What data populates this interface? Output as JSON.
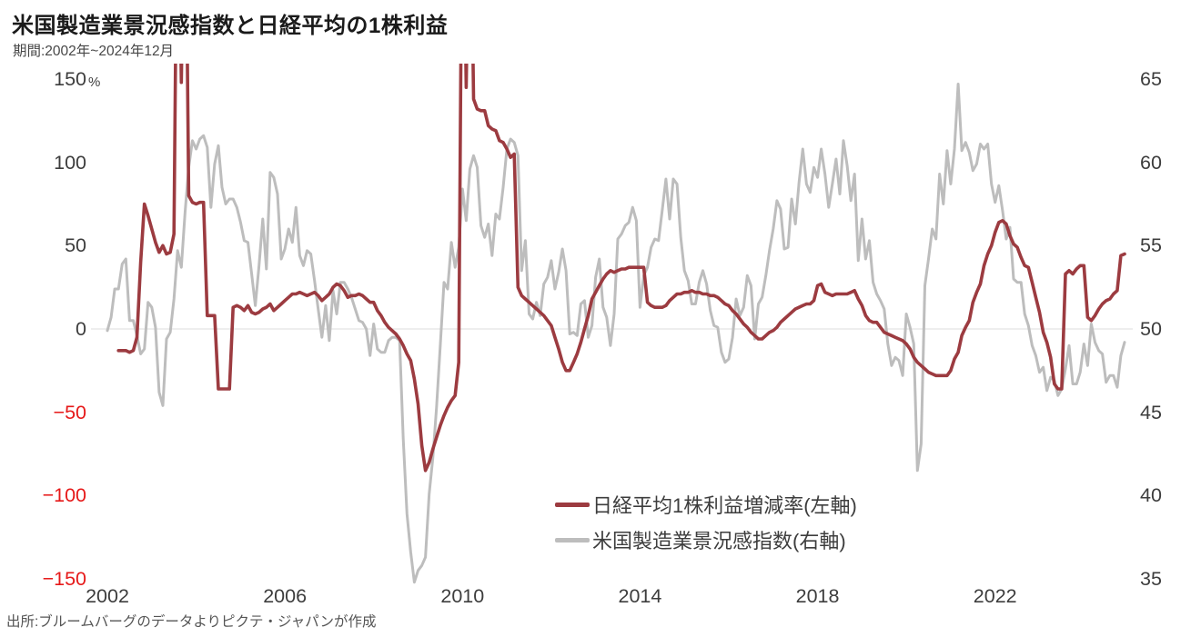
{
  "chart": {
    "title": "米国製造業景況感指数と日経平均の1株利益",
    "subtitle": "期間:2002年~2024年12月",
    "source": "出所:ブルームバーグのデータよりピクテ・ジャパンが作成",
    "unit_label": "%"
  },
  "legend": {
    "items": [
      {
        "label": "日経平均1株利益増減率(左軸)",
        "color": "#9c3b40"
      },
      {
        "label": "米国製造業景況感指数(右軸)",
        "color": "#bdbdbd"
      }
    ]
  },
  "axes": {
    "left": {
      "ticks": [
        150,
        100,
        50,
        0,
        -50,
        -100,
        -150
      ],
      "positive_color": "#3d3d3d",
      "negative_color": "#e61919",
      "unit": "%"
    },
    "right": {
      "ticks": [
        65,
        60,
        55,
        50,
        45,
        40,
        35
      ],
      "color": "#3d3d3d"
    },
    "x": {
      "ticks": [
        "2002",
        "2006",
        "2010",
        "2014",
        "2018",
        "2022"
      ],
      "color": "#3d3d3d"
    }
  },
  "colors": {
    "eps_line": "#9c3b40",
    "ism_line": "#bdbdbd",
    "zero_gridline": "#dcdcdc",
    "background": "#ffffff"
  },
  "chart_data": {
    "type": "line",
    "title": "米国製造業景況感指数と日経平均の1株利益",
    "frequency": "monthly",
    "x_start": "2002-01",
    "x_end": "2024-12",
    "left_axis_range": [
      -150,
      150
    ],
    "right_axis_range": [
      35,
      65
    ],
    "grid": "zero-line-only",
    "legend_position": "inside-bottom-center",
    "series": [
      {
        "name": "日経平均1株利益増減率(左軸)",
        "axis": "left",
        "unit": "%",
        "color": "#9c3b40",
        "values": [
          null,
          null,
          null,
          -13,
          -13,
          -13,
          -14,
          -13,
          -5,
          40,
          75,
          68,
          60,
          52,
          46,
          50,
          45,
          46,
          57,
          300,
          148,
          300,
          80,
          76,
          75,
          76,
          76,
          8,
          8,
          8,
          -36,
          -36,
          -36,
          -36,
          13,
          14,
          13,
          11,
          14,
          10,
          9,
          10,
          12,
          13,
          15,
          11,
          13,
          15,
          17,
          19,
          21,
          21,
          22,
          21,
          20,
          21,
          22,
          20,
          17,
          19,
          21,
          25,
          27,
          26,
          23,
          19,
          20,
          20,
          21,
          20,
          18,
          16,
          16,
          11,
          8,
          4,
          1,
          -1,
          -3,
          -6,
          -10,
          -15,
          -19,
          -30,
          -45,
          -70,
          -85,
          -80,
          -72,
          -65,
          -58,
          -52,
          -47,
          -43,
          -40,
          -20,
          300,
          145,
          300,
          138,
          132,
          131,
          131,
          122,
          120,
          119,
          113,
          112,
          108,
          103,
          105,
          25,
          20,
          18,
          16,
          14,
          12,
          10,
          8,
          5,
          2,
          -5,
          -12,
          -20,
          -25,
          -25,
          -20,
          -15,
          -8,
          0,
          8,
          18,
          22,
          26,
          30,
          33,
          35,
          34,
          35,
          36,
          36,
          37,
          37,
          37,
          37,
          37,
          16,
          14,
          13,
          13,
          13,
          14,
          17,
          19,
          21,
          21,
          22,
          22,
          23,
          22,
          22,
          21,
          21,
          20,
          20,
          19,
          17,
          15,
          14,
          11,
          9,
          6,
          3,
          1,
          -2,
          -4,
          -6,
          -6,
          -4,
          -2,
          -1,
          1,
          4,
          6,
          8,
          10,
          12,
          13,
          14,
          15,
          15,
          17,
          26,
          27,
          22,
          21,
          20,
          21,
          21,
          21,
          21,
          22,
          23,
          18,
          14,
          8,
          5,
          4,
          4,
          1,
          -2,
          -3,
          -4,
          -5,
          -6,
          -7,
          -9,
          -12,
          -17,
          -20,
          -22,
          -24,
          -26,
          -27,
          -28,
          -28,
          -28,
          -28,
          -25,
          -18,
          -14,
          -4,
          1,
          5,
          16,
          22,
          27,
          38,
          45,
          50,
          58,
          64,
          65,
          63,
          56,
          51,
          49,
          43,
          38,
          37,
          28,
          19,
          10,
          -2,
          -8,
          -17,
          -33,
          -36,
          -36,
          33,
          35,
          33,
          36,
          38,
          38,
          7,
          5,
          8,
          12,
          15,
          17,
          18,
          21,
          23,
          44,
          45
        ]
      },
      {
        "name": "米国製造業景況感指数(右軸)",
        "axis": "right",
        "unit": "index",
        "color": "#bdbdbd",
        "values": [
          49.9,
          50.7,
          52.4,
          52.4,
          53.9,
          54.2,
          50.5,
          50.5,
          49.6,
          48.5,
          48.8,
          51.6,
          51.3,
          50.1,
          46.2,
          45.4,
          49.4,
          49.8,
          51.8,
          54.7,
          53.7,
          57.0,
          59.7,
          61.3,
          60.8,
          61.4,
          61.6,
          60.9,
          57.3,
          59.9,
          61.0,
          58.5,
          57.5,
          57.8,
          57.8,
          57.3,
          56.4,
          55.3,
          55.2,
          53.3,
          51.4,
          53.8,
          56.6,
          53.6,
          59.4,
          59.1,
          58.1,
          54.2,
          54.8,
          56.0,
          55.2,
          57.3,
          54.4,
          53.8,
          54.7,
          54.5,
          52.9,
          51.2,
          49.5,
          51.4,
          49.3,
          52.3,
          50.9,
          52.8,
          52.8,
          52.4,
          51.9,
          51.2,
          50.5,
          50.4,
          50.0,
          48.4,
          50.3,
          48.8,
          48.6,
          48.6,
          49.3,
          49.5,
          49.5,
          49.3,
          43.4,
          38.9,
          36.6,
          34.8,
          35.5,
          35.8,
          36.3,
          40.1,
          42.3,
          45.3,
          49.0,
          52.8,
          52.4,
          55.2,
          53.7,
          54.9,
          58.4,
          56.5,
          59.6,
          60.4,
          59.7,
          56.2,
          55.5,
          56.3,
          54.4,
          56.9,
          56.6,
          58.5,
          60.8,
          61.4,
          61.2,
          60.4,
          53.5,
          55.3,
          50.9,
          50.6,
          51.6,
          50.8,
          52.7,
          53.1,
          54.1,
          52.4,
          53.4,
          54.8,
          53.5,
          49.7,
          49.8,
          49.6,
          51.5,
          51.7,
          49.5,
          50.2,
          53.1,
          54.2,
          51.3,
          50.7,
          49.0,
          50.9,
          55.4,
          55.7,
          56.2,
          56.4,
          57.3,
          56.5,
          51.3,
          53.2,
          53.7,
          54.9,
          55.4,
          55.3,
          57.1,
          59.0,
          56.6,
          59.0,
          58.7,
          55.5,
          53.5,
          52.9,
          51.5,
          51.5,
          52.8,
          53.5,
          52.7,
          51.1,
          50.2,
          50.1,
          48.6,
          48.0,
          48.2,
          49.5,
          51.8,
          50.8,
          51.3,
          53.2,
          52.6,
          49.4,
          51.5,
          51.9,
          53.2,
          54.7,
          56.0,
          57.7,
          57.2,
          54.8,
          54.9,
          57.8,
          56.3,
          58.8,
          60.8,
          58.7,
          58.2,
          59.7,
          59.1,
          60.8,
          59.3,
          57.3,
          58.7,
          60.2,
          58.1,
          61.3,
          59.8,
          57.7,
          59.3,
          54.1,
          56.6,
          54.2,
          55.3,
          52.8,
          52.1,
          51.7,
          51.2,
          49.1,
          47.8,
          48.3,
          48.1,
          47.2,
          50.9,
          50.1,
          49.1,
          41.5,
          43.1,
          52.6,
          54.2,
          56.0,
          55.4,
          59.3,
          57.5,
          60.7,
          58.7,
          60.8,
          64.7,
          60.7,
          61.2,
          60.6,
          59.5,
          59.9,
          61.1,
          60.8,
          61.1,
          58.7,
          57.6,
          58.6,
          57.1,
          55.4,
          56.1,
          53.0,
          52.8,
          52.8,
          50.9,
          50.2,
          49.0,
          48.4,
          47.4,
          47.7,
          46.3,
          47.1,
          46.9,
          46.0,
          46.4,
          47.6,
          49.0,
          46.7,
          46.7,
          47.4,
          49.1,
          47.8,
          50.3,
          49.2,
          48.7,
          48.5,
          46.8,
          47.2,
          47.2,
          46.5,
          48.4,
          49.2
        ]
      }
    ]
  }
}
